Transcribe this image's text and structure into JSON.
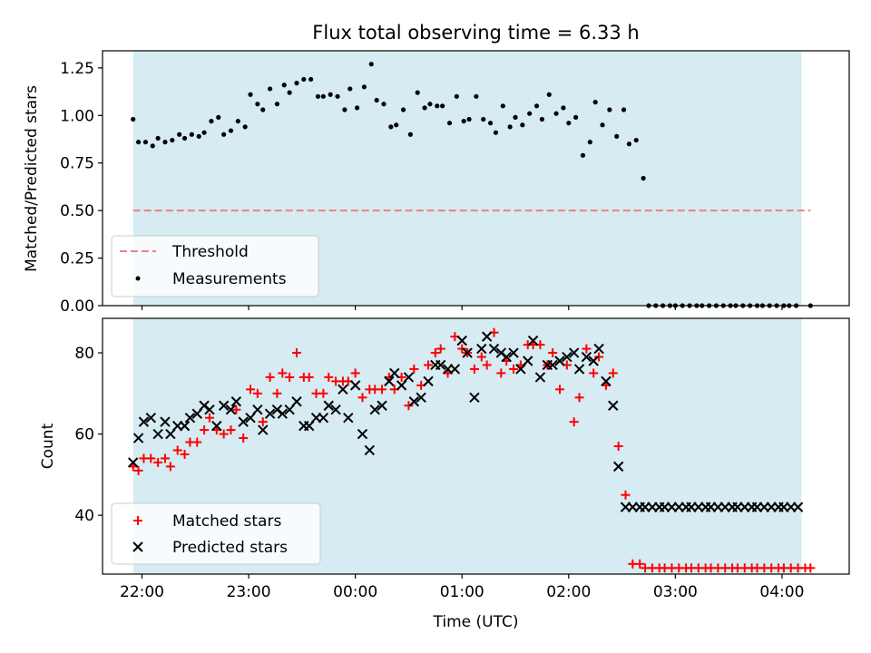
{
  "chart_data": [
    {
      "type": "scatter",
      "title": "Flux total observing time = 6.33 h",
      "xlabel": "",
      "ylabel": "Matched/Predicted stars",
      "ylim": [
        0,
        1.34
      ],
      "xlim": [
        21.63,
        4.63
      ],
      "x_ticks": [
        "22:00",
        "23:00",
        "00:00",
        "01:00",
        "02:00",
        "03:00",
        "04:00"
      ],
      "y_ticks": [
        "0.00",
        "0.25",
        "0.50",
        "0.75",
        "1.00",
        "1.25"
      ],
      "shaded_span": {
        "from": "21:55",
        "to": "04:11",
        "color": "#add8e6"
      },
      "legend_position": "lower left",
      "series": [
        {
          "name": "Threshold",
          "style": "dashed-line",
          "color": "#f08080",
          "x": [
            "21:55",
            "04:16"
          ],
          "y": [
            0.5,
            0.5
          ]
        },
        {
          "name": "Measurements",
          "style": "dot",
          "color": "#000000",
          "x": [
            "21:55",
            "21:58",
            "22:02",
            "22:06",
            "22:09",
            "22:13",
            "22:17",
            "22:21",
            "22:24",
            "22:28",
            "22:32",
            "22:35",
            "22:39",
            "22:43",
            "22:46",
            "22:50",
            "22:54",
            "22:58",
            "23:01",
            "23:05",
            "23:08",
            "23:12",
            "23:16",
            "23:20",
            "23:23",
            "23:27",
            "23:31",
            "23:35",
            "23:39",
            "23:42",
            "23:46",
            "23:50",
            "23:54",
            "23:57",
            "00:01",
            "00:05",
            "00:09",
            "00:12",
            "00:16",
            "00:20",
            "00:23",
            "00:27",
            "00:31",
            "00:35",
            "00:39",
            "00:42",
            "00:46",
            "00:49",
            "00:53",
            "00:57",
            "01:01",
            "01:04",
            "01:08",
            "01:12",
            "01:16",
            "01:19",
            "01:23",
            "01:27",
            "01:30",
            "01:34",
            "01:38",
            "01:42",
            "01:45",
            "01:49",
            "01:53",
            "01:57",
            "02:00",
            "02:04",
            "02:08",
            "02:12",
            "02:15",
            "02:19",
            "02:23",
            "02:27",
            "02:31",
            "02:34",
            "02:38",
            "02:42",
            "02:45",
            "02:49",
            "02:53",
            "02:57",
            "03:00",
            "03:04",
            "03:08",
            "03:12",
            "03:15",
            "03:19",
            "03:23",
            "03:27",
            "03:31",
            "03:34",
            "03:38",
            "03:42",
            "03:46",
            "03:49",
            "03:53",
            "03:57",
            "04:01",
            "04:04",
            "04:08",
            "04:16"
          ],
          "y": [
            0.98,
            0.86,
            0.86,
            0.84,
            0.88,
            0.86,
            0.87,
            0.9,
            0.88,
            0.9,
            0.89,
            0.91,
            0.97,
            0.99,
            0.9,
            0.92,
            0.97,
            0.94,
            1.11,
            1.06,
            1.03,
            1.14,
            1.06,
            1.16,
            1.12,
            1.17,
            1.19,
            1.19,
            1.1,
            1.1,
            1.11,
            1.1,
            1.03,
            1.14,
            1.04,
            1.15,
            1.27,
            1.08,
            1.06,
            0.94,
            0.95,
            1.03,
            0.9,
            1.12,
            1.04,
            1.06,
            1.05,
            1.05,
            0.96,
            1.1,
            0.97,
            0.98,
            1.1,
            0.98,
            0.96,
            0.91,
            1.05,
            0.94,
            0.99,
            0.95,
            1.01,
            1.05,
            0.98,
            1.11,
            1.01,
            1.04,
            0.96,
            0.99,
            0.79,
            0.86,
            1.07,
            0.95,
            1.03,
            0.89,
            1.03,
            0.85,
            0.87,
            0.67,
            0.0,
            0.0,
            0.0,
            0.0,
            0.0,
            0.0,
            0.0,
            0.0,
            0.0,
            0.0,
            0.0,
            0.0,
            0.0,
            0.0,
            0.0,
            0.0,
            0.0,
            0.0,
            0.0,
            0.0,
            0.0,
            0.0,
            0.0,
            0.0
          ]
        }
      ]
    },
    {
      "type": "scatter",
      "title": "",
      "xlabel": "Time (UTC)",
      "ylabel": "Count",
      "ylim": [
        25.5,
        88.5
      ],
      "xlim": [
        21.63,
        4.63
      ],
      "x_ticks": [
        "22:00",
        "23:00",
        "00:00",
        "01:00",
        "02:00",
        "03:00",
        "04:00"
      ],
      "y_ticks": [
        "40",
        "60",
        "80"
      ],
      "shaded_span": {
        "from": "21:55",
        "to": "04:11",
        "color": "#add8e6"
      },
      "legend_position": "lower left",
      "series": [
        {
          "name": "Matched stars",
          "marker": "plus",
          "color": "#ff0000",
          "x": [
            "21:55",
            "21:58",
            "22:01",
            "22:05",
            "22:09",
            "22:13",
            "22:16",
            "22:20",
            "22:24",
            "22:27",
            "22:31",
            "22:35",
            "22:38",
            "22:42",
            "22:46",
            "22:50",
            "22:53",
            "22:57",
            "23:01",
            "23:05",
            "23:08",
            "23:12",
            "23:16",
            "23:19",
            "23:23",
            "23:27",
            "23:31",
            "23:34",
            "23:38",
            "23:42",
            "23:45",
            "23:49",
            "23:53",
            "23:56",
            "24:00",
            "24:04",
            "24:08",
            "24:11",
            "24:15",
            "24:19",
            "24:22",
            "24:26",
            "24:30",
            "24:33",
            "24:37",
            "24:41",
            "24:45",
            "24:48",
            "24:52",
            "24:56",
            "25:00",
            "25:03",
            "25:07",
            "25:11",
            "25:14",
            "25:18",
            "25:22",
            "25:25",
            "25:29",
            "25:33",
            "25:37",
            "25:40",
            "25:44",
            "25:48",
            "25:51",
            "25:55",
            "25:59",
            "26:03",
            "26:06",
            "26:10",
            "26:14",
            "26:17",
            "26:21",
            "26:25",
            "26:28",
            "26:32",
            "26:36",
            "26:40",
            "26:43",
            "26:47",
            "26:51",
            "26:54",
            "26:58",
            "27:02",
            "27:06",
            "27:09",
            "27:13",
            "27:17",
            "27:20",
            "27:24",
            "27:28",
            "27:32",
            "27:35",
            "27:39",
            "27:43",
            "27:46",
            "27:50",
            "27:54",
            "27:58",
            "28:01",
            "28:05",
            "28:09",
            "28:13",
            "28:16"
          ],
          "y": [
            52,
            51,
            54,
            54,
            53,
            54,
            52,
            56,
            55,
            58,
            58,
            61,
            64,
            61,
            60,
            61,
            66,
            59,
            71,
            70,
            63,
            74,
            70,
            75,
            74,
            80,
            74,
            74,
            70,
            70,
            74,
            73,
            73,
            73,
            75,
            69,
            71,
            71,
            71,
            74,
            71,
            74,
            67,
            76,
            72,
            77,
            80,
            81,
            75,
            84,
            81,
            80,
            76,
            79,
            77,
            85,
            75,
            78,
            76,
            77,
            82,
            82,
            82,
            77,
            80,
            71,
            77,
            63,
            69,
            81,
            75,
            79,
            72,
            75,
            57,
            45,
            28,
            28,
            27,
            27,
            27,
            27,
            27,
            27,
            27,
            27,
            27,
            27,
            27,
            27,
            27,
            27,
            27,
            27,
            27,
            27,
            27,
            27,
            27,
            27,
            27,
            27,
            27,
            27
          ]
        },
        {
          "name": "Predicted stars",
          "marker": "x",
          "color": "#000000",
          "x": [
            "21:55",
            "21:58",
            "22:01",
            "22:05",
            "22:09",
            "22:13",
            "22:16",
            "22:20",
            "22:24",
            "22:27",
            "22:31",
            "22:35",
            "22:38",
            "22:42",
            "22:46",
            "22:50",
            "22:53",
            "22:57",
            "23:01",
            "23:05",
            "23:08",
            "23:12",
            "23:16",
            "23:19",
            "23:23",
            "23:27",
            "23:31",
            "23:34",
            "23:38",
            "23:42",
            "23:45",
            "23:49",
            "23:53",
            "23:56",
            "24:00",
            "24:04",
            "24:08",
            "24:11",
            "24:15",
            "24:19",
            "24:22",
            "24:26",
            "24:30",
            "24:33",
            "24:37",
            "24:41",
            "24:45",
            "24:48",
            "24:52",
            "24:56",
            "25:00",
            "25:03",
            "25:07",
            "25:11",
            "25:14",
            "25:18",
            "25:22",
            "25:25",
            "25:29",
            "25:33",
            "25:37",
            "25:40",
            "25:44",
            "25:48",
            "25:51",
            "25:55",
            "25:59",
            "26:03",
            "26:06",
            "26:10",
            "26:14",
            "26:17",
            "26:21",
            "26:25",
            "26:28",
            "26:32",
            "26:36",
            "26:40",
            "26:43",
            "26:47",
            "26:51",
            "26:54",
            "26:58",
            "27:02",
            "27:06",
            "27:09",
            "27:13",
            "27:17",
            "27:20",
            "27:24",
            "27:28",
            "27:32",
            "27:35",
            "27:39",
            "27:43",
            "27:46",
            "27:50",
            "27:54",
            "27:58",
            "28:01",
            "28:05",
            "28:09"
          ],
          "y": [
            53,
            59,
            63,
            64,
            60,
            63,
            60,
            62,
            62,
            64,
            65,
            67,
            66,
            62,
            67,
            66,
            68,
            63,
            64,
            66,
            61,
            65,
            66,
            65,
            66,
            68,
            62,
            62,
            64,
            64,
            67,
            66,
            71,
            64,
            72,
            60,
            56,
            66,
            67,
            73,
            75,
            72,
            74,
            68,
            69,
            73,
            77,
            77,
            76,
            76,
            83,
            80,
            69,
            81,
            84,
            81,
            80,
            79,
            80,
            76,
            78,
            83,
            74,
            77,
            77,
            78,
            79,
            80,
            76,
            79,
            78,
            81,
            73,
            67,
            52,
            42,
            42,
            42,
            42,
            42,
            42,
            42,
            42,
            42,
            42,
            42,
            42,
            42,
            42,
            42,
            42,
            42,
            42,
            42,
            42,
            42,
            42,
            42,
            42,
            42,
            42,
            42
          ]
        }
      ]
    }
  ]
}
